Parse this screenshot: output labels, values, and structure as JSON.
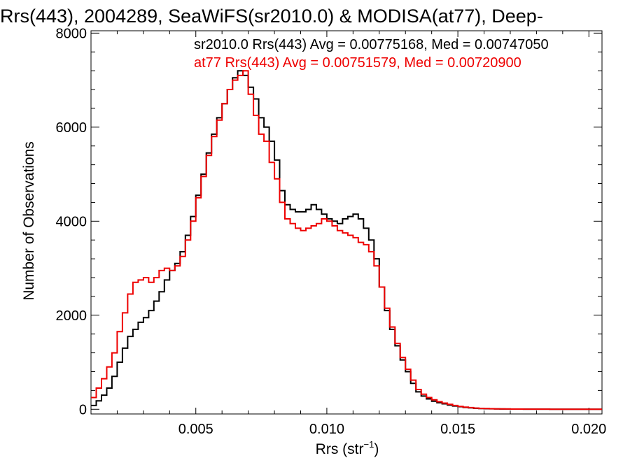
{
  "chart_data": {
    "type": "line",
    "title": "Rrs(443), 2004289, SeaWiFS(sr2010.0) & MODISA(at77), Deep-",
    "xlabel_main": "Rrs (str",
    "xlabel_sup": "−1",
    "xlabel_close": ")",
    "ylabel": "Number of Observations",
    "xlim": [
      0.001,
      0.0205
    ],
    "ylim": [
      -100,
      8050
    ],
    "x_ticks": [
      0.005,
      0.01,
      0.015,
      0.02
    ],
    "x_tick_labels": [
      "0.005",
      "0.010",
      "0.015",
      "0.020"
    ],
    "y_ticks": [
      0,
      2000,
      4000,
      6000,
      8000
    ],
    "y_tick_labels": [
      "0",
      "2000",
      "4000",
      "6000",
      "8000"
    ],
    "grid": false,
    "step": true,
    "annotations": [
      {
        "text": "sr2010.0 Rrs(443) Avg = 0.00775168, Med = 0.00747050",
        "color": "#000000"
      },
      {
        "text": "at77 Rrs(443) Avg = 0.00751579, Med = 0.00720900",
        "color": "#ee0000"
      }
    ],
    "series": [
      {
        "color": "#000000",
        "x": [
          0.001,
          0.0012,
          0.0014,
          0.0016,
          0.0018,
          0.002,
          0.0022,
          0.0024,
          0.0026,
          0.0028,
          0.003,
          0.0032,
          0.0034,
          0.0036,
          0.0038,
          0.004,
          0.0042,
          0.0044,
          0.0046,
          0.0048,
          0.005,
          0.0052,
          0.0054,
          0.0056,
          0.0058,
          0.006,
          0.0062,
          0.0064,
          0.0066,
          0.0068,
          0.007,
          0.0072,
          0.0074,
          0.0076,
          0.0078,
          0.008,
          0.0082,
          0.0084,
          0.0086,
          0.0088,
          0.009,
          0.0092,
          0.0094,
          0.0096,
          0.0098,
          0.01,
          0.0102,
          0.0104,
          0.0106,
          0.0108,
          0.011,
          0.0112,
          0.0114,
          0.0116,
          0.0118,
          0.012,
          0.0122,
          0.0124,
          0.0126,
          0.0128,
          0.013,
          0.0132,
          0.0134,
          0.0136,
          0.0138,
          0.014,
          0.0142,
          0.0144,
          0.0146,
          0.0148,
          0.015,
          0.0152,
          0.0154,
          0.0156,
          0.0158,
          0.016,
          0.0162,
          0.0164,
          0.0166,
          0.0168,
          0.017,
          0.0175,
          0.018,
          0.0185,
          0.019,
          0.0195,
          0.02,
          0.0205
        ],
        "y": [
          80,
          180,
          300,
          450,
          700,
          1000,
          1300,
          1550,
          1700,
          1850,
          1950,
          2100,
          2300,
          2500,
          2750,
          2950,
          3100,
          3350,
          3700,
          4100,
          4550,
          5000,
          5450,
          5850,
          6200,
          6500,
          6800,
          7050,
          7200,
          7100,
          6850,
          6600,
          6200,
          6000,
          5700,
          5300,
          4650,
          4350,
          4250,
          4200,
          4200,
          4250,
          4350,
          4250,
          4150,
          4050,
          4000,
          3950,
          4050,
          4100,
          4150,
          4050,
          3850,
          3600,
          3200,
          2600,
          2100,
          1700,
          1350,
          1050,
          800,
          550,
          370,
          280,
          220,
          170,
          140,
          115,
          90,
          70,
          55,
          40,
          30,
          20,
          15,
          12,
          10,
          8,
          6,
          5,
          4,
          3,
          2,
          1,
          1,
          0,
          0,
          0
        ]
      },
      {
        "color": "#ee0000",
        "x": [
          0.001,
          0.0012,
          0.0014,
          0.0016,
          0.0018,
          0.002,
          0.0022,
          0.0024,
          0.0026,
          0.0028,
          0.003,
          0.0032,
          0.0034,
          0.0036,
          0.0038,
          0.004,
          0.0042,
          0.0044,
          0.0046,
          0.0048,
          0.005,
          0.0052,
          0.0054,
          0.0056,
          0.0058,
          0.006,
          0.0062,
          0.0064,
          0.0066,
          0.0068,
          0.007,
          0.0072,
          0.0074,
          0.0076,
          0.0078,
          0.008,
          0.0082,
          0.0084,
          0.0086,
          0.0088,
          0.009,
          0.0092,
          0.0094,
          0.0096,
          0.0098,
          0.01,
          0.0102,
          0.0104,
          0.0106,
          0.0108,
          0.011,
          0.0112,
          0.0114,
          0.0116,
          0.0118,
          0.012,
          0.0122,
          0.0124,
          0.0126,
          0.0128,
          0.013,
          0.0132,
          0.0134,
          0.0136,
          0.0138,
          0.014,
          0.0142,
          0.0144,
          0.0146,
          0.0148,
          0.015,
          0.0152,
          0.0154,
          0.0156,
          0.0158,
          0.016,
          0.0162,
          0.0164,
          0.0166,
          0.0168,
          0.017,
          0.0175,
          0.018,
          0.0185,
          0.019,
          0.0195,
          0.02,
          0.0205
        ],
        "y": [
          250,
          450,
          650,
          900,
          1200,
          1650,
          2050,
          2450,
          2700,
          2750,
          2800,
          2700,
          2800,
          2950,
          3000,
          2950,
          3050,
          3250,
          3600,
          4000,
          4500,
          4950,
          5400,
          5800,
          6150,
          6500,
          6800,
          7000,
          7100,
          7200,
          6700,
          6250,
          5850,
          5700,
          5250,
          4900,
          4400,
          4050,
          3950,
          3850,
          3800,
          3850,
          3900,
          3950,
          4050,
          4000,
          3900,
          3800,
          3750,
          3700,
          3650,
          3550,
          3500,
          3350,
          3050,
          2600,
          2150,
          1750,
          1400,
          1100,
          850,
          620,
          420,
          320,
          250,
          200,
          160,
          130,
          105,
          80,
          60,
          45,
          35,
          25,
          18,
          14,
          11,
          9,
          7,
          5,
          4,
          3,
          2,
          1,
          1,
          0,
          0,
          0
        ]
      }
    ]
  }
}
